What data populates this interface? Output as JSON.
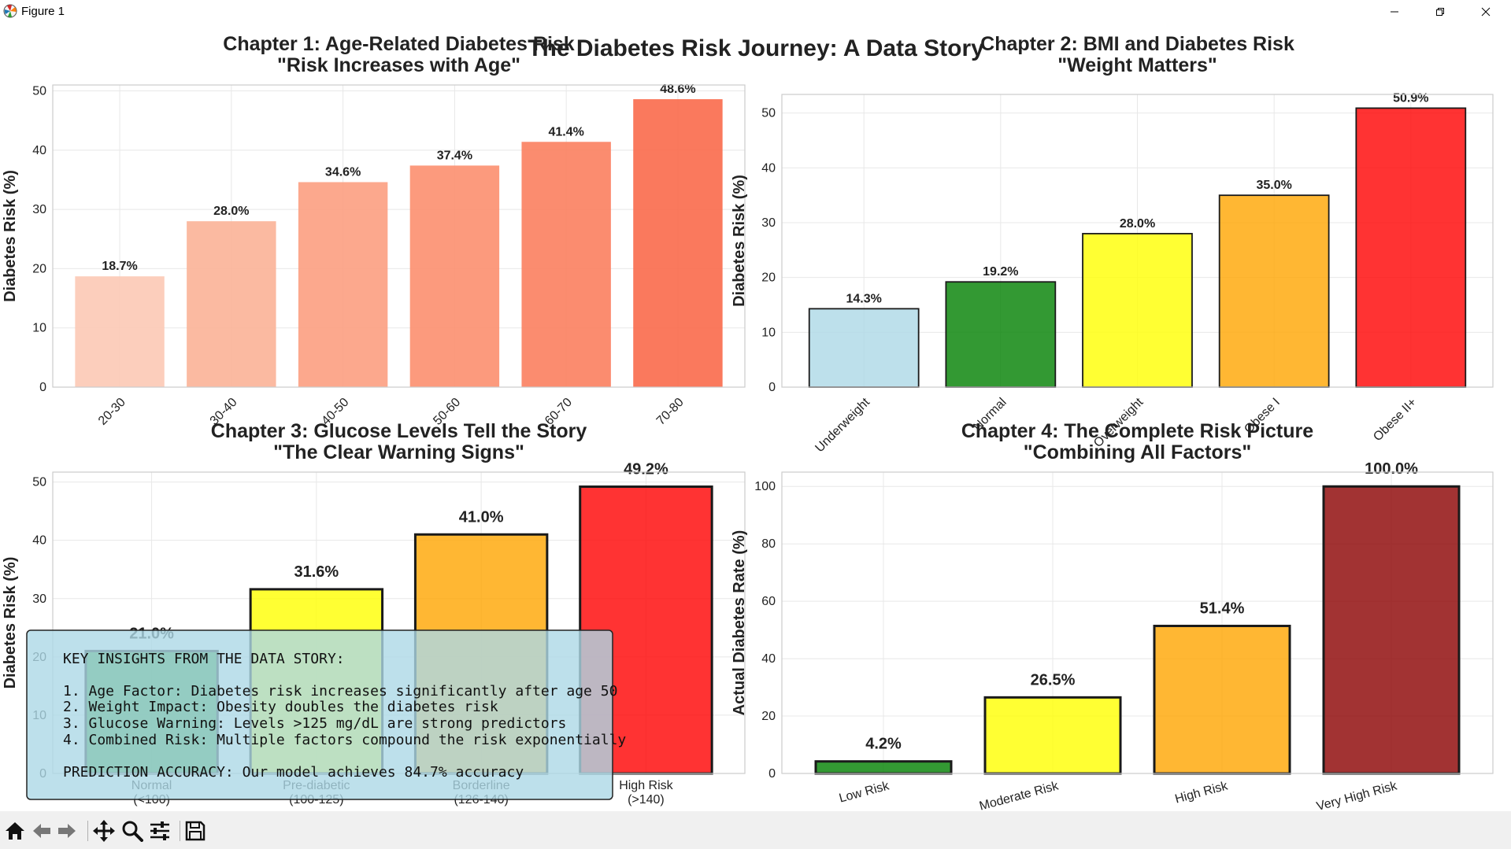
{
  "window": {
    "title": "Figure 1"
  },
  "suptitle": "The Diabetes Risk Journey: A Data Story",
  "colors": {
    "accent_red": "#ff3333",
    "frame": "#cccccc",
    "grid": "#e8e8e8"
  },
  "chart_data": [
    {
      "type": "bar",
      "title_line1": "Chapter 1: Age-Related Diabetes Risk",
      "title_line2": "\"Risk Increases with Age\"",
      "xlabel": "",
      "ylabel": "Diabetes Risk (%)",
      "categories": [
        "20-30",
        "30-40",
        "40-50",
        "50-60",
        "60-70",
        "70-80"
      ],
      "values": [
        18.7,
        28.0,
        34.6,
        37.4,
        41.4,
        48.6
      ],
      "data_labels": [
        "18.7%",
        "28.0%",
        "34.6%",
        "37.4%",
        "41.4%",
        "48.6%"
      ],
      "colors": [
        "#fcc9b5",
        "#fbb297",
        "#fc9f81",
        "#fc8f6f",
        "#fb7f5f",
        "#fa6a4b"
      ],
      "yticks": [
        0,
        10,
        20,
        30,
        40,
        50
      ],
      "ylim": [
        0,
        51.0
      ],
      "grid": true,
      "bar_edges": false,
      "xtick_rotation": 45
    },
    {
      "type": "bar",
      "title_line1": "Chapter 2: BMI and Diabetes Risk",
      "title_line2": "\"Weight Matters\"",
      "xlabel": "",
      "ylabel": "Diabetes Risk (%)",
      "categories": [
        "Underweight",
        "Normal",
        "Overweight",
        "Obese I",
        "Obese II+"
      ],
      "values": [
        14.3,
        19.2,
        28.0,
        35.0,
        50.9
      ],
      "data_labels": [
        "14.3%",
        "19.2%",
        "28.0%",
        "35.0%",
        "50.9%"
      ],
      "colors": [
        "#add8e6",
        "#008000",
        "#ffff00",
        "#ffa500",
        "#ff0000"
      ],
      "yticks": [
        0,
        10,
        20,
        30,
        40,
        50
      ],
      "ylim": [
        0,
        53.4
      ],
      "grid": true,
      "bar_edges": true,
      "xtick_rotation": 45
    },
    {
      "type": "bar",
      "title_line1": "Chapter 3: Glucose Levels Tell the Story",
      "title_line2": "\"The Clear Warning Signs\"",
      "xlabel": "",
      "ylabel": "Diabetes Risk (%)",
      "categories": [
        "Normal\n(<100)",
        "Pre-diabetic\n(100-125)",
        "Borderline\n(126-140)",
        "High Risk\n(>140)"
      ],
      "values": [
        21.0,
        31.6,
        41.0,
        49.2
      ],
      "data_labels": [
        "21.0%",
        "31.6%",
        "41.0%",
        "49.2%"
      ],
      "colors": [
        "#008000",
        "#ffff00",
        "#ffa500",
        "#ff0000"
      ],
      "yticks": [
        0,
        10,
        20,
        30,
        40,
        50
      ],
      "ylim": [
        0,
        51.7
      ],
      "grid": true,
      "bar_edges": true,
      "xtick_rotation": 0
    },
    {
      "type": "bar",
      "title_line1": "Chapter 4: The Complete Risk Picture",
      "title_line2": "\"Combining All Factors\"",
      "xlabel": "",
      "ylabel": "Actual Diabetes Rate (%)",
      "categories": [
        "Low Risk",
        "Moderate Risk",
        "High Risk",
        "Very High Risk"
      ],
      "values": [
        4.2,
        26.5,
        51.4,
        100.0
      ],
      "data_labels": [
        "4.2%",
        "26.5%",
        "51.4%",
        "100.0%"
      ],
      "colors": [
        "#008000",
        "#ffff00",
        "#ffa500",
        "#8b0000"
      ],
      "yticks": [
        0,
        20,
        40,
        60,
        80,
        100
      ],
      "ylim": [
        0,
        105
      ],
      "grid": true,
      "bar_edges": true,
      "xtick_rotation": 15
    }
  ],
  "insights": {
    "heading": "KEY INSIGHTS FROM THE DATA STORY:",
    "items": [
      "1. Age Factor: Diabetes risk increases significantly after age 50",
      "2. Weight Impact: Obesity doubles the diabetes risk",
      "3. Glucose Warning: Levels >125 mg/dL are strong predictors",
      "4. Combined Risk: Multiple factors compound the risk exponentially"
    ],
    "accuracy": "PREDICTION ACCURACY: Our model achieves 84.7% accuracy",
    "background": "#add8e6"
  },
  "toolbar": {
    "buttons": [
      "home-icon",
      "back-arrow-icon",
      "forward-arrow-icon",
      "pan-icon",
      "zoom-icon",
      "configure-subplots-icon",
      "save-icon"
    ]
  }
}
